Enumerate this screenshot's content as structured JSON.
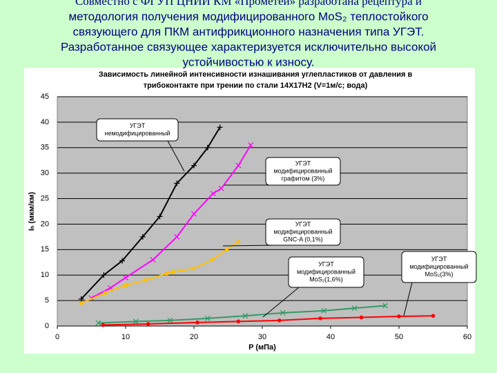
{
  "slide_text": [
    "Совместно с ФГУП ЦНИИ КМ «Прометей» разработана рецептура и",
    "методология получения модифицированного MoS₂ теплостойкого",
    "связующего для ПКМ антифрикционного назначения типа УГЭТ.",
    "Разработанное связующее характеризуется исключительно высокой",
    "устойчивостью к износу."
  ],
  "chart_data": {
    "type": "line",
    "title": [
      "Зависимость линейной интенсивности изнашивания углепластиков от давления в",
      "трибоконтакте при трении по стали 14Х17Н2 (V=1м/с; вода)"
    ],
    "x_label": "P (мПа)",
    "y_label": "Iₕ (мкм/км)",
    "xlim": [
      0,
      60
    ],
    "xticks": [
      0,
      10,
      20,
      30,
      40,
      50,
      60
    ],
    "ylim": [
      0,
      45
    ],
    "yticks": [
      0,
      5,
      10,
      15,
      20,
      25,
      30,
      35,
      40,
      45
    ],
    "grid": true,
    "series": [
      {
        "color": "#000000",
        "marker": "plus",
        "x": [
          3.5,
          6.8,
          9.5,
          12.5,
          15,
          17.5,
          20,
          22,
          23.8
        ],
        "values": [
          5.3,
          10,
          12.8,
          17.5,
          21.5,
          28,
          31.5,
          35,
          39
        ]
      },
      {
        "color": "#ff00ff",
        "marker": "cross",
        "x": [
          5,
          7.8,
          10,
          14,
          17.5,
          20,
          22.8,
          24,
          26.5,
          28.3
        ],
        "values": [
          5.5,
          7.5,
          9.5,
          13,
          17.5,
          22,
          26,
          27,
          31.5,
          35.5
        ]
      },
      {
        "color": "#ffc000",
        "marker": "square",
        "x": [
          3.5,
          7,
          10,
          13,
          16,
          17,
          20,
          22.7,
          24.8,
          26.5
        ],
        "values": [
          4.5,
          6.5,
          8,
          9,
          10.3,
          10.6,
          11.3,
          13,
          15,
          16.5
        ]
      },
      {
        "color": "#339966",
        "marker": "cross",
        "x": [
          6,
          11.5,
          16.5,
          22,
          27.5,
          33,
          39,
          43.5,
          48
        ],
        "values": [
          0.6,
          0.9,
          1.1,
          1.5,
          2,
          2.6,
          3,
          3.5,
          4
        ]
      },
      {
        "color": "#ff0000",
        "marker": "circle",
        "x": [
          6.7,
          13.3,
          20.5,
          26.5,
          32.5,
          38.5,
          44.5,
          50,
          55
        ],
        "values": [
          0.2,
          0.4,
          0.7,
          0.9,
          1.1,
          1.5,
          1.7,
          1.9,
          2
        ]
      }
    ],
    "annotations": [
      {
        "lines": [
          "УГЭТ",
          "немодифицированный"
        ]
      },
      {
        "lines": [
          "УГЭТ",
          "модифицированный",
          "графитом (3%)"
        ]
      },
      {
        "lines": [
          "УГЭТ",
          "модифицированный",
          "GNC-A (0,1%)"
        ]
      },
      {
        "lines": [
          "УГЭТ",
          "модифицированный",
          "MoS₂(1,6%)"
        ]
      },
      {
        "lines": [
          "УГЭТ",
          "модифицированный",
          "MoS₂(3%)"
        ]
      }
    ]
  }
}
